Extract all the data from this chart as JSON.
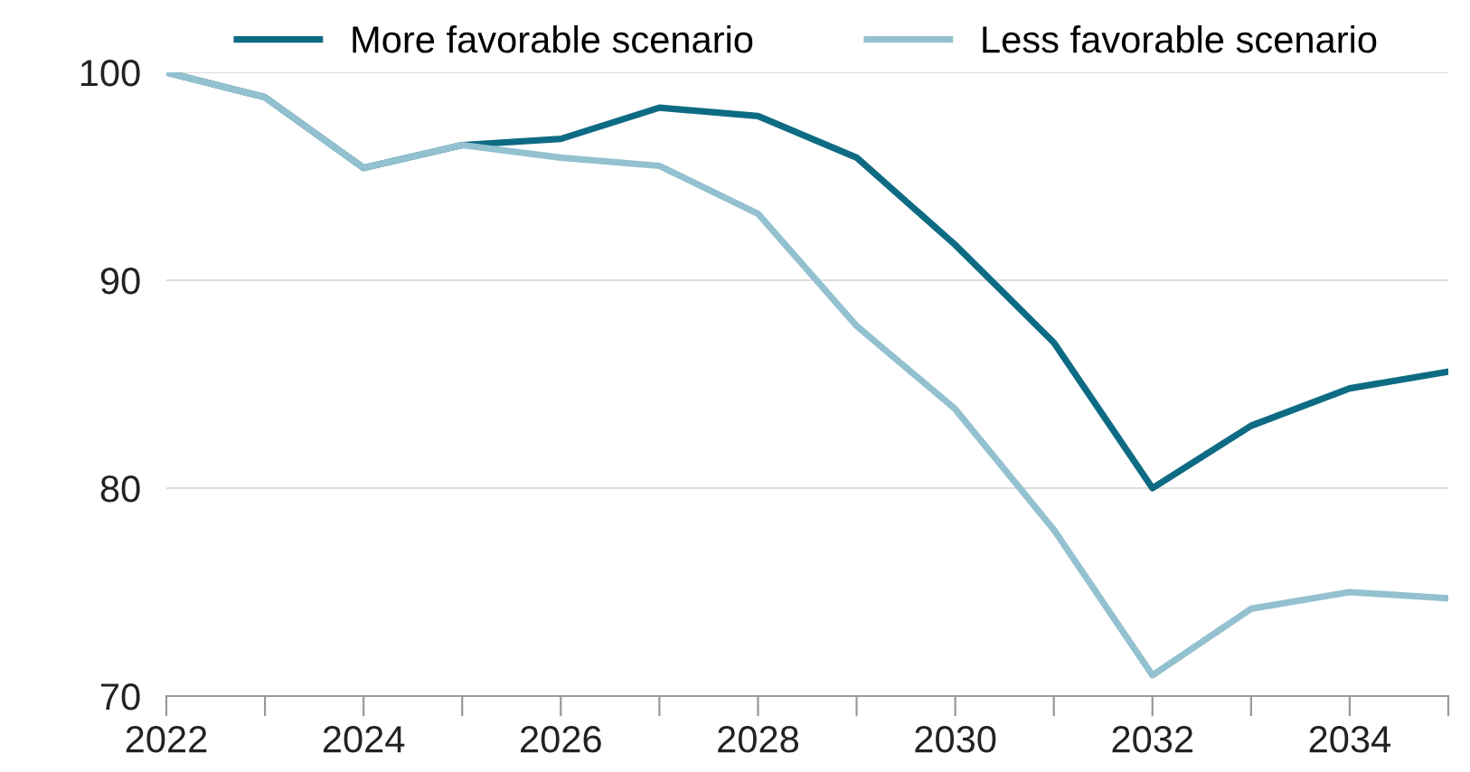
{
  "chart_data": {
    "type": "line",
    "x": [
      2022,
      2023,
      2024,
      2025,
      2026,
      2027,
      2028,
      2029,
      2030,
      2031,
      2032,
      2033,
      2034,
      2035
    ],
    "series": [
      {
        "name": "More favorable scenario",
        "color": "#0e6b84",
        "values": [
          100,
          98.8,
          95.4,
          96.5,
          96.8,
          98.3,
          97.9,
          95.9,
          91.7,
          87.0,
          80.0,
          83.0,
          84.8,
          85.6
        ]
      },
      {
        "name": "Less favorable scenario",
        "color": "#93c1cf",
        "values": [
          100,
          98.8,
          95.4,
          96.5,
          95.9,
          95.5,
          93.2,
          87.8,
          83.8,
          78.0,
          71.0,
          74.2,
          75.0,
          74.7
        ]
      }
    ],
    "xlim": [
      2022,
      2035
    ],
    "xticks": [
      2022,
      {
        "value": 2023,
        "label": null
      },
      2024,
      {
        "value": 2025,
        "label": null
      },
      2026,
      {
        "value": 2027,
        "label": null
      },
      2028,
      {
        "value": 2029,
        "label": null
      },
      2030,
      {
        "value": 2031,
        "label": null
      },
      2032,
      {
        "value": 2033,
        "label": null
      },
      2034,
      {
        "value": 2035,
        "label": null
      }
    ],
    "ylim": [
      70,
      100
    ],
    "yticks": [
      70,
      80,
      90,
      100
    ],
    "grid": "y",
    "legend": "top",
    "marker": "none",
    "line_style": "solid"
  }
}
